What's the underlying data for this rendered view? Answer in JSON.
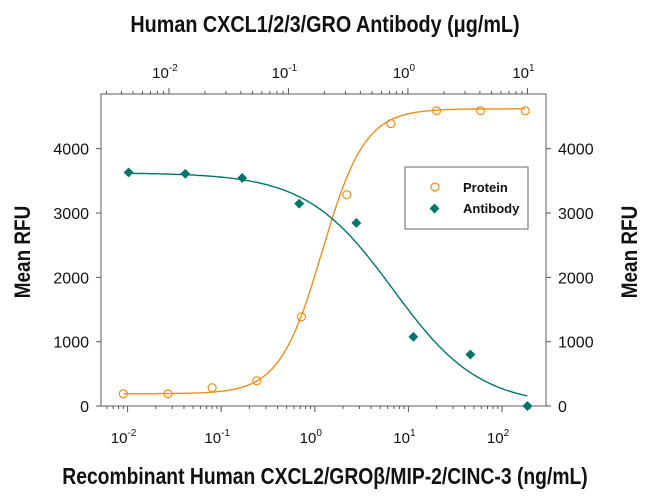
{
  "chart_data": {
    "type": "scatter",
    "title": "Human CXCL1/2/3/GRO Antibody (μg/mL)",
    "xlabel": "Recombinant Human CXCL2/GROβ/MIP-2/CINC-3 (ng/mL)",
    "ylabel": "Mean RFU",
    "ylabel_right": "Mean RFU",
    "x_scale": "log",
    "x_range": [
      0.0052,
      295
    ],
    "x_top_scale": "log",
    "x_top_range": [
      0.0027,
      14.3
    ],
    "ylim": [
      0,
      4850
    ],
    "y_ticks": [
      "0",
      "1000",
      "2000",
      "3000",
      "4000"
    ],
    "x_ticks": [
      {
        "base": "10",
        "exp": "-2"
      },
      {
        "base": "10",
        "exp": "-1"
      },
      {
        "base": "10",
        "exp": "0"
      },
      {
        "base": "10",
        "exp": "1"
      },
      {
        "base": "10",
        "exp": "2"
      }
    ],
    "x_top_ticks": [
      {
        "base": "10",
        "exp": "-2"
      },
      {
        "base": "10",
        "exp": "-1"
      },
      {
        "base": "10",
        "exp": "0"
      },
      {
        "base": "10",
        "exp": "1"
      }
    ],
    "grid": false,
    "legend_position": "right",
    "series": [
      {
        "name": "Protein",
        "axis": "bottom",
        "marker": "open-circle",
        "color": "#ee8e1c",
        "x": [
          0.009,
          0.027,
          0.08,
          0.24,
          0.72,
          2.2,
          6.5,
          20,
          59,
          177
        ],
        "y": [
          190,
          190,
          285,
          390,
          1385,
          3285,
          4390,
          4590,
          4590,
          4590
        ]
      },
      {
        "name": "Antibody",
        "axis": "top",
        "marker": "filled-diamond",
        "color": "#00756a",
        "x": [
          0.0046,
          0.0137,
          0.041,
          0.123,
          0.37,
          1.11,
          3.33,
          10
        ],
        "y": [
          3630,
          3610,
          3545,
          3145,
          2845,
          1075,
          800,
          0
        ]
      }
    ]
  }
}
